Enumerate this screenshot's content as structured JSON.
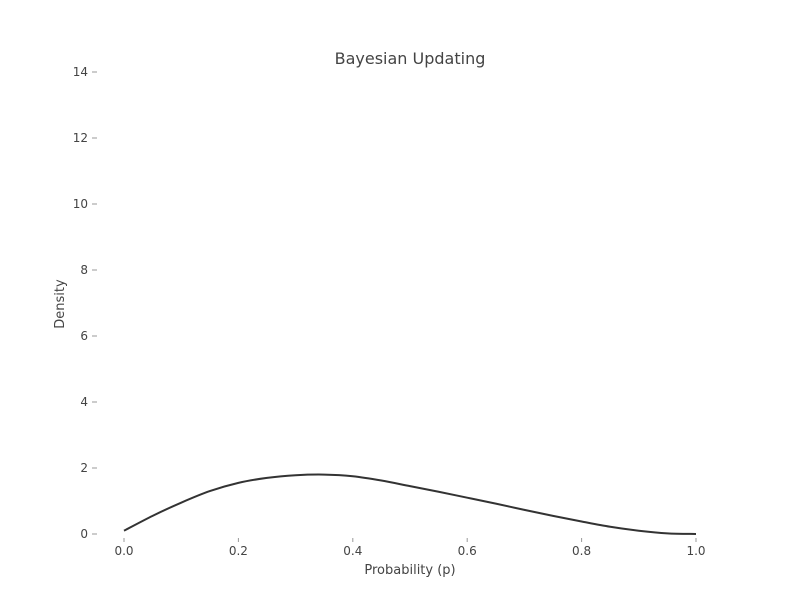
{
  "chart_data": {
    "type": "line",
    "title": "Bayesian Updating",
    "xlabel": "Probability (p)",
    "ylabel": "Density",
    "xlim": [
      0,
      1
    ],
    "ylim": [
      0,
      14
    ],
    "x_ticks": [
      "0.0",
      "0.2",
      "0.4",
      "0.6",
      "0.8",
      "1.0"
    ],
    "y_ticks": [
      "0",
      "2",
      "4",
      "6",
      "8",
      "10",
      "12",
      "14"
    ],
    "grid": false,
    "legend": "none",
    "series": [
      {
        "color": "#333333",
        "x": [
          0.0,
          0.05,
          0.1,
          0.15,
          0.2,
          0.25,
          0.3,
          0.35,
          0.4,
          0.45,
          0.5,
          0.55,
          0.6,
          0.65,
          0.7,
          0.75,
          0.8,
          0.85,
          0.9,
          0.95,
          1.0
        ],
        "y": [
          0.1,
          0.55,
          0.95,
          1.3,
          1.55,
          1.7,
          1.78,
          1.8,
          1.75,
          1.62,
          1.45,
          1.28,
          1.1,
          0.92,
          0.73,
          0.55,
          0.38,
          0.22,
          0.1,
          0.02,
          0.0
        ]
      }
    ]
  }
}
